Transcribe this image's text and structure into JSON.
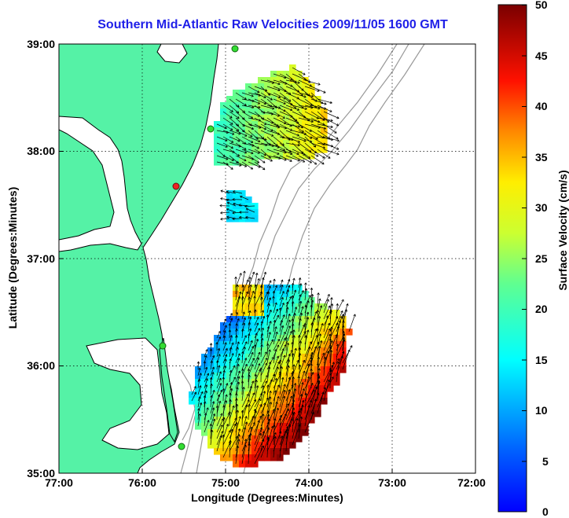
{
  "title": "Southern Mid-Atlantic Raw Velocities 2009/11/05 1600 GMT",
  "axes": {
    "xlabel": "Longitude (Degrees:Minutes)",
    "ylabel": "Latitude (Degrees:Minutes)",
    "x_ticks": [
      "77:00",
      "76:00",
      "75:00",
      "74:00",
      "73:00",
      "72:00"
    ],
    "y_ticks": [
      "39:00",
      "38:00",
      "37:00",
      "36:00",
      "35:00"
    ],
    "grid": "dotted"
  },
  "colorbar": {
    "label": "Surface Velocity (cm/s)",
    "ticks": [
      "50",
      "45",
      "40",
      "35",
      "30",
      "25",
      "20",
      "15",
      "10",
      "5",
      "0"
    ],
    "range": [
      0,
      50
    ],
    "colormap": "jet"
  },
  "colors": {
    "title": "#1f1fe8",
    "land": "#55f2a6",
    "coast": "#000000",
    "bathymetry": "#999999",
    "station_green": "#33dd33",
    "station_red": "#ee2222"
  }
}
